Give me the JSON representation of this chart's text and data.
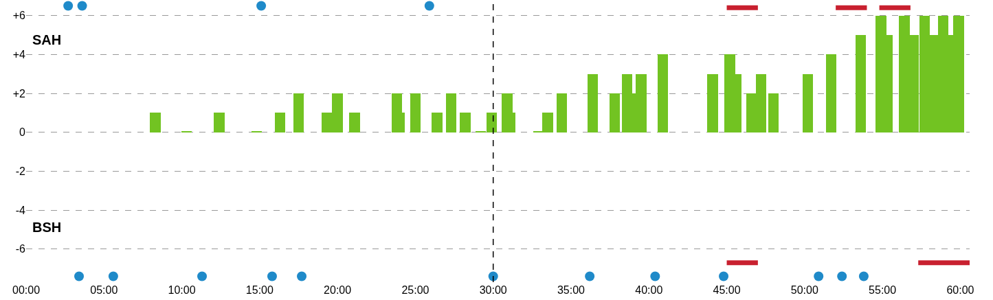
{
  "chart_data": {
    "type": "bar",
    "annotations": [
      "SAH",
      "BSH"
    ],
    "xlim": [
      0,
      60.6
    ],
    "xticks": [
      {
        "value": 0,
        "label": "00:00"
      },
      {
        "value": 5,
        "label": "05:00"
      },
      {
        "value": 10,
        "label": "10:00"
      },
      {
        "value": 15,
        "label": "15:00"
      },
      {
        "value": 20,
        "label": "20:00"
      },
      {
        "value": 25,
        "label": "25:00"
      },
      {
        "value": 30,
        "label": "30:00"
      },
      {
        "value": 35,
        "label": "35:00"
      },
      {
        "value": 40,
        "label": "40:00"
      },
      {
        "value": 45,
        "label": "45:00"
      },
      {
        "value": 50,
        "label": "50:00"
      },
      {
        "value": 55,
        "label": "55:00"
      },
      {
        "value": 60,
        "label": "60:00"
      }
    ],
    "ylim": [
      -7.7,
      6.8
    ],
    "yticks": [
      {
        "value": 6,
        "label": "+6"
      },
      {
        "value": 4,
        "label": "+4"
      },
      {
        "value": 2,
        "label": "+2"
      },
      0,
      -2,
      -4,
      -6
    ],
    "grid": "y",
    "ref_lines": [
      {
        "axis": "x",
        "value": 30,
        "color": "#000000",
        "line_style": "dashed"
      }
    ],
    "series": [
      {
        "color": "#72c322",
        "x": [
          8.3,
          10.3,
          12.4,
          14.8,
          16.3,
          17.5,
          19.3,
          20.0,
          21.1,
          23.8,
          24.0,
          25.0,
          26.4,
          27.3,
          28.2,
          29.2,
          29.9,
          30.9,
          31.1,
          32.9,
          33.5,
          34.4,
          36.4,
          37.8,
          38.6,
          38.9,
          39.5,
          40.9,
          44.1,
          45.2,
          45.6,
          46.6,
          47.2,
          48.0,
          50.2,
          51.7,
          53.6,
          54.9,
          55.3,
          56.4,
          57.0,
          57.7,
          58.3,
          58.9,
          59.2,
          59.9
        ],
        "values": [
          1,
          0.05,
          1,
          0.05,
          1,
          2,
          1,
          2,
          1,
          2,
          1,
          2,
          1,
          2,
          1,
          0.05,
          1,
          2,
          1,
          0.05,
          1,
          2,
          3,
          2,
          3,
          2,
          3,
          4,
          3,
          4,
          3,
          2,
          3,
          2,
          3,
          4,
          5,
          6,
          5,
          6,
          5,
          6,
          5,
          6,
          5,
          6
        ]
      },
      {
        "type": "scatter",
        "marker": "circle",
        "color": "#1f8ac9",
        "x": [
          2.7,
          3.6,
          15.1,
          25.9
        ],
        "values": [
          6.5,
          6.5,
          6.5,
          6.5
        ]
      },
      {
        "type": "scatter",
        "marker": "circle",
        "color": "#1f8ac9",
        "x": [
          3.4,
          5.6,
          11.3,
          15.8,
          17.7,
          30.0,
          36.2,
          40.4,
          44.8,
          50.9,
          52.4,
          53.8
        ],
        "values": [
          -7.4,
          -7.4,
          -7.4,
          -7.4,
          -7.4,
          -7.4,
          -7.4,
          -7.4,
          -7.4,
          -7.4,
          -7.4,
          -7.4
        ]
      },
      {
        "type": "line",
        "marker": "none",
        "line_style": "solid",
        "color": "#c8202f",
        "x": [
          45.0,
          47.0
        ],
        "values": [
          6.4,
          6.4
        ]
      },
      {
        "type": "line",
        "marker": "none",
        "line_style": "solid",
        "color": "#c8202f",
        "x": [
          52.0,
          54.0
        ],
        "values": [
          6.4,
          6.4
        ]
      },
      {
        "type": "line",
        "marker": "none",
        "line_style": "solid",
        "color": "#c8202f",
        "x": [
          54.8,
          56.8
        ],
        "values": [
          6.4,
          6.4
        ]
      },
      {
        "type": "line",
        "marker": "none",
        "line_style": "solid",
        "color": "#c8202f",
        "x": [
          45.0,
          47.0
        ],
        "values": [
          -6.7,
          -6.7
        ]
      },
      {
        "type": "line",
        "marker": "none",
        "line_style": "solid",
        "color": "#c8202f",
        "x": [
          57.3,
          60.6
        ],
        "values": [
          -6.7,
          -6.7
        ]
      }
    ]
  }
}
